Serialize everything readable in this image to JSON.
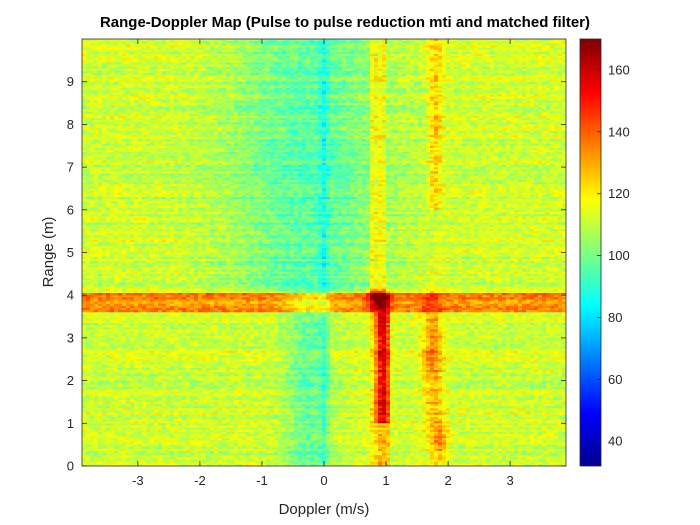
{
  "chart_data": {
    "type": "heatmap",
    "title": "Range-Doppler Map (Pulse to pulse reduction mti and matched filter)",
    "xlabel": "Doppler (m/s)",
    "ylabel": "Range (m)",
    "xlim": [
      -3.9,
      3.9
    ],
    "ylim": [
      0,
      10
    ],
    "x_ticks": [
      -3,
      -2,
      -1,
      0,
      1,
      2,
      3
    ],
    "x_tick_labels": [
      "-3",
      "-2",
      "-1",
      "0",
      "1",
      "2",
      "3"
    ],
    "y_ticks": [
      0,
      1,
      2,
      3,
      4,
      5,
      6,
      7,
      8,
      9
    ],
    "y_tick_labels": [
      "0",
      "1",
      "2",
      "3",
      "4",
      "5",
      "6",
      "7",
      "8",
      "9"
    ],
    "colorbar": {
      "colormap": "jet",
      "range": [
        32,
        170
      ],
      "ticks": [
        40,
        60,
        80,
        100,
        120,
        140,
        160
      ],
      "tick_labels": [
        "40",
        "60",
        "80",
        "100",
        "120",
        "140",
        "160"
      ]
    },
    "features": {
      "background_level": 112,
      "clutter_notch": {
        "doppler_m_s": 0,
        "level": 88
      },
      "range_band": {
        "range_m": [
          3.6,
          4.05
        ],
        "level": 135
      },
      "doppler_band": {
        "doppler_m_s": [
          0.75,
          1.0
        ],
        "level": 130
      },
      "strong_target": {
        "doppler_m_s": 0.9,
        "range_m": 3.9,
        "level": 165
      }
    }
  }
}
